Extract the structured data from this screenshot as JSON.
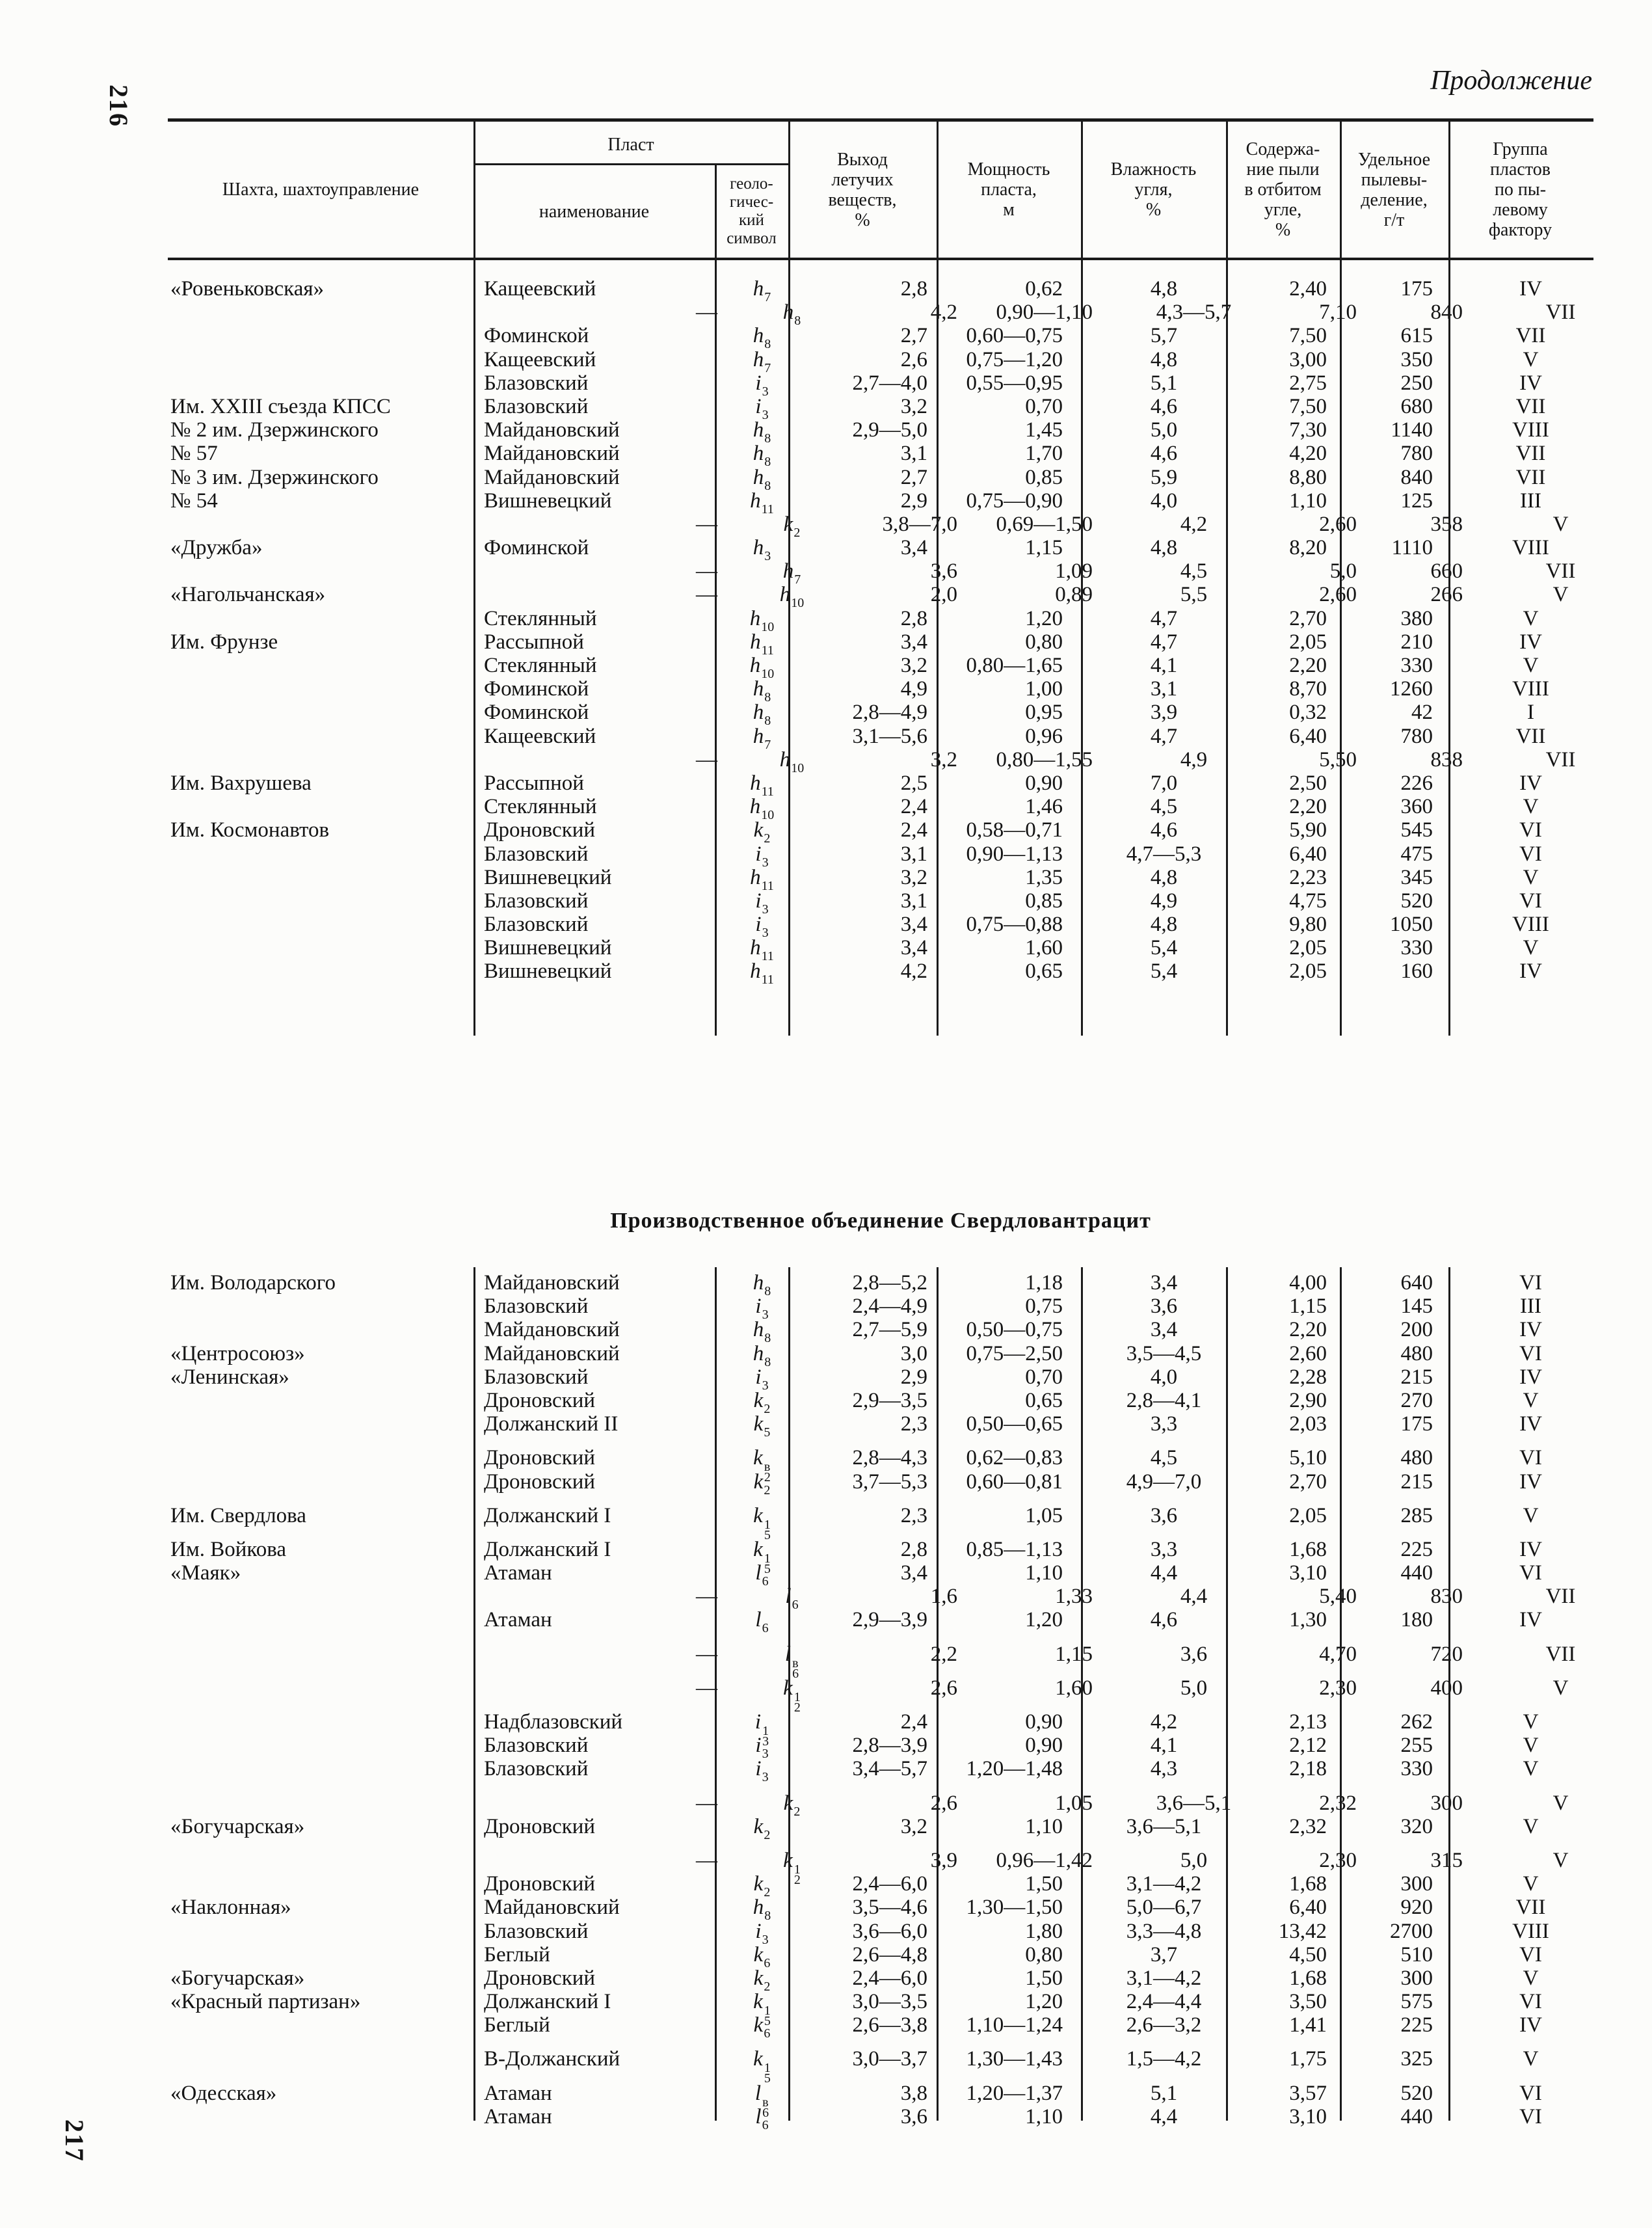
{
  "page": {
    "number_top": "216",
    "number_bottom": "217",
    "continuation": "Продолжение"
  },
  "header": {
    "mine": "Шахта, шахтоуправление",
    "seam_group": "Пласт",
    "seam_name": "наименование",
    "seam_symbol": "геоло-\nгичес-\nкий\nсимвол",
    "volatile": "Выход\nлетучих\nвеществ,\n%",
    "thickness": "Мощность\nпласта,\nм",
    "moisture": "Влажность\nугля,\n%",
    "dust": "Содержа-\nние пыли\nв отбитом\nугле,\n%",
    "emission": "Удельное\nпылевы-\nделение,\nг/т",
    "group": "Группа\nпластов\nпо пы-\nлевому\nфактору"
  },
  "section_title": "Производственное объединение Свердловантрацит",
  "table1": {
    "rows": [
      {
        "mine": "«Ровеньковская»",
        "seam": "Кащеевский",
        "sym": "h|7",
        "v": [
          "2,8",
          "0,62",
          "4,8",
          "2,40",
          "175",
          "IV"
        ],
        "gap": false
      },
      {
        "mine": "",
        "seam": "—",
        "sym": "h|8",
        "v": [
          "4,2",
          "0,90—1,10",
          "4,3—5,7",
          "7,10",
          "840",
          "VII"
        ],
        "gap": false
      },
      {
        "mine": "",
        "seam": "Фоминской",
        "sym": "h|8",
        "v": [
          "2,7",
          "0,60—0,75",
          "5,7",
          "7,50",
          "615",
          "VII"
        ],
        "gap": false
      },
      {
        "mine": "",
        "seam": "Кащеевский",
        "sym": "h|7",
        "v": [
          "2,6",
          "0,75—1,20",
          "4,8",
          "3,00",
          "350",
          "V"
        ],
        "gap": false
      },
      {
        "mine": "",
        "seam": "Блазовский",
        "sym": "i|3",
        "v": [
          "2,7—4,0",
          "0,55—0,95",
          "5,1",
          "2,75",
          "250",
          "IV"
        ],
        "gap": false
      },
      {
        "mine": "Им. XXIII съезда КПСС",
        "seam": "Блазовский",
        "sym": "i|3",
        "v": [
          "3,2",
          "0,70",
          "4,6",
          "7,50",
          "680",
          "VII"
        ],
        "gap": false
      },
      {
        "mine": "№ 2 им. Дзержинского",
        "seam": "Майдановский",
        "sym": "h|8",
        "v": [
          "2,9—5,0",
          "1,45",
          "5,0",
          "7,30",
          "1140",
          "VIII"
        ],
        "gap": false
      },
      {
        "mine": "№ 57",
        "seam": "Майдановский",
        "sym": "h|8",
        "v": [
          "3,1",
          "1,70",
          "4,6",
          "4,20",
          "780",
          "VII"
        ],
        "gap": false
      },
      {
        "mine": "№ 3 им. Дзержинского",
        "seam": "Майдановский",
        "sym": "h|8",
        "v": [
          "2,7",
          "0,85",
          "5,9",
          "8,80",
          "840",
          "VII"
        ],
        "gap": false
      },
      {
        "mine": "№ 54",
        "seam": "Вишневецкий",
        "sym": "h|11",
        "v": [
          "2,9",
          "0,75—0,90",
          "4,0",
          "1,10",
          "125",
          "III"
        ],
        "gap": false
      },
      {
        "mine": "",
        "seam": "—",
        "sym": "k|2",
        "v": [
          "3,8—7,0",
          "0,69—1,50",
          "4,2",
          "2,60",
          "358",
          "V"
        ],
        "gap": false
      },
      {
        "mine": "«Дружба»",
        "seam": "Фоминской",
        "sym": "h|3",
        "v": [
          "3,4",
          "1,15",
          "4,8",
          "8,20",
          "1110",
          "VIII"
        ],
        "gap": false
      },
      {
        "mine": "",
        "seam": "—",
        "sym": "h|7",
        "v": [
          "3,6",
          "1,09",
          "4,5",
          "5,0",
          "660",
          "VII"
        ],
        "gap": false
      },
      {
        "mine": "«Нагольчанская»",
        "seam": "—",
        "sym": "h|10",
        "v": [
          "2,0",
          "0,89",
          "5,5",
          "2,60",
          "266",
          "V"
        ],
        "gap": false
      },
      {
        "mine": "",
        "seam": "Стеклянный",
        "sym": "h|10",
        "v": [
          "2,8",
          "1,20",
          "4,7",
          "2,70",
          "380",
          "V"
        ],
        "gap": false
      },
      {
        "mine": "Им. Фрунзе",
        "seam": "Рассыпной",
        "sym": "h|11",
        "v": [
          "3,4",
          "0,80",
          "4,7",
          "2,05",
          "210",
          "IV"
        ],
        "gap": false
      },
      {
        "mine": "",
        "seam": "Стеклянный",
        "sym": "h|10",
        "v": [
          "3,2",
          "0,80—1,65",
          "4,1",
          "2,20",
          "330",
          "V"
        ],
        "gap": false
      },
      {
        "mine": "",
        "seam": "Фоминской",
        "sym": "h|8",
        "v": [
          "4,9",
          "1,00",
          "3,1",
          "8,70",
          "1260",
          "VIII"
        ],
        "gap": false
      },
      {
        "mine": "",
        "seam": "Фоминской",
        "sym": "h|8",
        "v": [
          "2,8—4,9",
          "0,95",
          "3,9",
          "0,32",
          "42",
          "I"
        ],
        "gap": false
      },
      {
        "mine": "",
        "seam": "Кащеевский",
        "sym": "h|7",
        "v": [
          "3,1—5,6",
          "0,96",
          "4,7",
          "6,40",
          "780",
          "VII"
        ],
        "gap": false
      },
      {
        "mine": "",
        "seam": "—",
        "sym": "h|10",
        "v": [
          "3,2",
          "0,80—1,55",
          "4,9",
          "5,50",
          "838",
          "VII"
        ],
        "gap": false
      },
      {
        "mine": "Им. Вахрушева",
        "seam": "Рассыпной",
        "sym": "h|11",
        "v": [
          "2,5",
          "0,90",
          "7,0",
          "2,50",
          "226",
          "IV"
        ],
        "gap": false
      },
      {
        "mine": "",
        "seam": "Стеклянный",
        "sym": "h|10",
        "v": [
          "2,4",
          "1,46",
          "4,5",
          "2,20",
          "360",
          "V"
        ],
        "gap": false
      },
      {
        "mine": "Им. Космонавтов",
        "seam": "Дроновский",
        "sym": "k|2",
        "v": [
          "2,4",
          "0,58—0,71",
          "4,6",
          "5,90",
          "545",
          "VI"
        ],
        "gap": false
      },
      {
        "mine": "",
        "seam": "Блазовский",
        "sym": "i|3",
        "v": [
          "3,1",
          "0,90—1,13",
          "4,7—5,3",
          "6,40",
          "475",
          "VI"
        ],
        "gap": false
      },
      {
        "mine": "",
        "seam": "Вишневецкий",
        "sym": "h|11",
        "v": [
          "3,2",
          "1,35",
          "4,8",
          "2,23",
          "345",
          "V"
        ],
        "gap": false
      },
      {
        "mine": "",
        "seam": "Блазовский",
        "sym": "i|3",
        "v": [
          "3,1",
          "0,85",
          "4,9",
          "4,75",
          "520",
          "VI"
        ],
        "gap": false
      },
      {
        "mine": "",
        "seam": "Блазовский",
        "sym": "i|3",
        "v": [
          "3,4",
          "0,75—0,88",
          "4,8",
          "9,80",
          "1050",
          "VIII"
        ],
        "gap": false
      },
      {
        "mine": "",
        "seam": "Вишневецкий",
        "sym": "h|11",
        "v": [
          "3,4",
          "1,60",
          "5,4",
          "2,05",
          "330",
          "V"
        ],
        "gap": false
      },
      {
        "mine": "",
        "seam": "Вишневецкий",
        "sym": "h|11",
        "v": [
          "4,2",
          "0,65",
          "5,4",
          "2,05",
          "160",
          "IV"
        ],
        "gap": false
      }
    ]
  },
  "table2": {
    "rows": [
      {
        "mine": "Им. Володарского",
        "seam": "Майдановский",
        "sym": "h|8",
        "v": [
          "2,8—5,2",
          "1,18",
          "3,4",
          "4,00",
          "640",
          "VI"
        ],
        "gap": false
      },
      {
        "mine": "",
        "seam": "Блазовский",
        "sym": "i|3",
        "v": [
          "2,4—4,9",
          "0,75",
          "3,6",
          "1,15",
          "145",
          "III"
        ],
        "gap": false
      },
      {
        "mine": "",
        "seam": "Майдановский",
        "sym": "h|8",
        "v": [
          "2,7—5,9",
          "0,50—0,75",
          "3,4",
          "2,20",
          "200",
          "IV"
        ],
        "gap": false
      },
      {
        "mine": "«Центросоюз»",
        "seam": "Майдановский",
        "sym": "h|8",
        "v": [
          "3,0",
          "0,75—2,50",
          "3,5—4,5",
          "2,60",
          "480",
          "VI"
        ],
        "gap": false
      },
      {
        "mine": "«Ленинская»",
        "seam": "Блазовский",
        "sym": "i|3",
        "v": [
          "2,9",
          "0,70",
          "4,0",
          "2,28",
          "215",
          "IV"
        ],
        "gap": false
      },
      {
        "mine": "",
        "seam": "Дроновский",
        "sym": "k|2",
        "v": [
          "2,9—3,5",
          "0,65",
          "2,8—4,1",
          "2,90",
          "270",
          "V"
        ],
        "gap": false
      },
      {
        "mine": "",
        "seam": "Должанский II",
        "sym": "k|5",
        "v": [
          "2,3",
          "0,50—0,65",
          "3,3",
          "2,03",
          "175",
          "IV"
        ],
        "gap": false
      },
      {
        "mine": "",
        "seam": "Дроновский",
        "sym": "k|2|в",
        "v": [
          "2,8—4,3",
          "0,62—0,83",
          "4,5",
          "5,10",
          "480",
          "VI"
        ],
        "gap": true
      },
      {
        "mine": "",
        "seam": "Дроновский",
        "sym": "k|2",
        "v": [
          "3,7—5,3",
          "0,60—0,81",
          "4,9—7,0",
          "2,70",
          "215",
          "IV"
        ],
        "gap": false
      },
      {
        "mine": "Им. Свердлова",
        "seam": "Должанский I",
        "sym": "k|5|1",
        "v": [
          "2,3",
          "1,05",
          "3,6",
          "2,05",
          "285",
          "V"
        ],
        "gap": true
      },
      {
        "mine": "Им. Войкова",
        "seam": "Должанский I",
        "sym": "k|5|1",
        "v": [
          "2,8",
          "0,85—1,13",
          "3,3",
          "1,68",
          "225",
          "IV"
        ],
        "gap": true
      },
      {
        "mine": "«Маяк»",
        "seam": "Атаман",
        "sym": "l|6",
        "v": [
          "3,4",
          "1,10",
          "4,4",
          "3,10",
          "440",
          "VI"
        ],
        "gap": false
      },
      {
        "mine": "",
        "seam": "—",
        "sym": "l|6",
        "v": [
          "1,6",
          "1,33",
          "4,4",
          "5,40",
          "830",
          "VII"
        ],
        "gap": false
      },
      {
        "mine": "",
        "seam": "Атаман",
        "sym": "l|6",
        "v": [
          "2,9—3,9",
          "1,20",
          "4,6",
          "1,30",
          "180",
          "IV"
        ],
        "gap": false
      },
      {
        "mine": "",
        "seam": "—",
        "sym": "l|6|в",
        "v": [
          "2,2",
          "1,15",
          "3,6",
          "4,70",
          "720",
          "VII"
        ],
        "gap": true
      },
      {
        "mine": "",
        "seam": "—",
        "sym": "k|2|1",
        "v": [
          "2,6",
          "1,60",
          "5,0",
          "2,30",
          "400",
          "V"
        ],
        "gap": true
      },
      {
        "mine": "",
        "seam": "Надблазовский",
        "sym": "i|3|1",
        "v": [
          "2,4",
          "0,90",
          "4,2",
          "2,13",
          "262",
          "V"
        ],
        "gap": true
      },
      {
        "mine": "",
        "seam": "Блазовский",
        "sym": "i|3",
        "v": [
          "2,8—3,9",
          "0,90",
          "4,1",
          "2,12",
          "255",
          "V"
        ],
        "gap": false
      },
      {
        "mine": "",
        "seam": "Блазовский",
        "sym": "i|3",
        "v": [
          "3,4—5,7",
          "1,20—1,48",
          "4,3",
          "2,18",
          "330",
          "V"
        ],
        "gap": false
      },
      {
        "mine": "",
        "seam": "—",
        "sym": "k|2",
        "v": [
          "2,6",
          "1,05",
          "3,6—5,1",
          "2,32",
          "300",
          "V"
        ],
        "gap": true
      },
      {
        "mine": "«Богучарская»",
        "seam": "Дроновский",
        "sym": "k|2",
        "v": [
          "3,2",
          "1,10",
          "3,6—5,1",
          "2,32",
          "320",
          "V"
        ],
        "gap": false
      },
      {
        "mine": "",
        "seam": "—",
        "sym": "k|2|1",
        "v": [
          "3,9",
          "0,96—1,42",
          "5,0",
          "2,30",
          "315",
          "V"
        ],
        "gap": true
      },
      {
        "mine": "",
        "seam": "Дроновский",
        "sym": "k|2",
        "v": [
          "2,4—6,0",
          "1,50",
          "3,1—4,2",
          "1,68",
          "300",
          "V"
        ],
        "gap": false
      },
      {
        "mine": "«Наклонная»",
        "seam": "Майдановский",
        "sym": "h|8",
        "v": [
          "3,5—4,6",
          "1,30—1,50",
          "5,0—6,7",
          "6,40",
          "920",
          "VII"
        ],
        "gap": false
      },
      {
        "mine": "",
        "seam": "Блазовский",
        "sym": "i|3",
        "v": [
          "3,6—6,0",
          "1,80",
          "3,3—4,8",
          "13,42",
          "2700",
          "VIII"
        ],
        "gap": false
      },
      {
        "mine": "",
        "seam": "Беглый",
        "sym": "k|6",
        "v": [
          "2,6—4,8",
          "0,80",
          "3,7",
          "4,50",
          "510",
          "VI"
        ],
        "gap": false
      },
      {
        "mine": "«Богучарская»",
        "seam": "Дроновский",
        "sym": "k|2",
        "v": [
          "2,4—6,0",
          "1,50",
          "3,1—4,2",
          "1,68",
          "300",
          "V"
        ],
        "gap": false
      },
      {
        "mine": "«Красный партизан»",
        "seam": "Должанский I",
        "sym": "k|5|1",
        "v": [
          "3,0—3,5",
          "1,20",
          "2,4—4,4",
          "3,50",
          "575",
          "VI"
        ],
        "gap": false
      },
      {
        "mine": "",
        "seam": "Беглый",
        "sym": "k|6",
        "v": [
          "2,6—3,8",
          "1,10—1,24",
          "2,6—3,2",
          "1,41",
          "225",
          "IV"
        ],
        "gap": false
      },
      {
        "mine": "",
        "seam": "В-Должанский",
        "sym": "k|5|1",
        "v": [
          "3,0—3,7",
          "1,30—1,43",
          "1,5—4,2",
          "1,75",
          "325",
          "V"
        ],
        "gap": true
      },
      {
        "mine": "«Одесская»",
        "seam": "Атаман",
        "sym": "l|6|в",
        "v": [
          "3,8",
          "1,20—1,37",
          "5,1",
          "3,57",
          "520",
          "VI"
        ],
        "gap": true
      },
      {
        "mine": "",
        "seam": "Атаман",
        "sym": "l|6",
        "v": [
          "3,6",
          "1,10",
          "4,4",
          "3,10",
          "440",
          "VI"
        ],
        "gap": false
      }
    ]
  }
}
